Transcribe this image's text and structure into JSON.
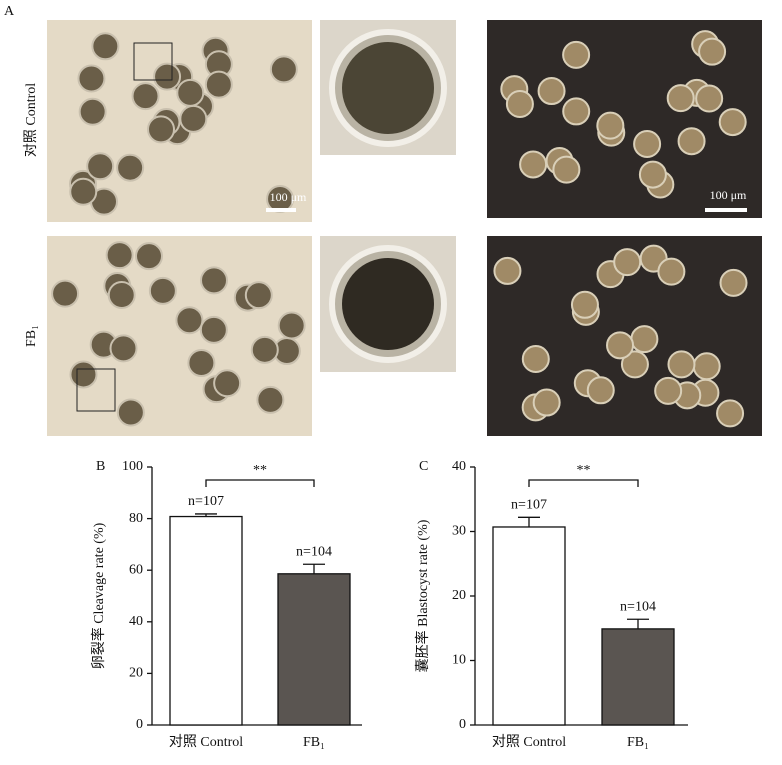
{
  "panel_label": "A",
  "image_rows": [
    {
      "label": "对照 Control",
      "scale_bars": [
        "100 μm",
        "100 μm"
      ]
    },
    {
      "label": "FB₁"
    }
  ],
  "chart_data": [
    {
      "type": "bar",
      "panel_label": "B",
      "y_label": "卵裂率 Cleavage rate (%)",
      "categories": [
        "对照 Control",
        "FB₁"
      ],
      "values": [
        80.8,
        58.6
      ],
      "errors": [
        1.0,
        3.7
      ],
      "colors": [
        "#ffffff",
        "#5a5551"
      ],
      "annotations": [
        "n=107",
        "n=104"
      ],
      "significance": "**",
      "ylim": [
        0,
        100
      ],
      "yticks": [
        0,
        20,
        40,
        60,
        80,
        100
      ]
    },
    {
      "type": "bar",
      "panel_label": "C",
      "y_label": "囊胚率 Blastocyst rate (%)",
      "categories": [
        "对照 Control",
        "FB₁"
      ],
      "values": [
        30.7,
        14.9
      ],
      "errors": [
        1.5,
        1.5
      ],
      "colors": [
        "#ffffff",
        "#5a5551"
      ],
      "annotations": [
        "n=107",
        "n=104"
      ],
      "significance": "**",
      "ylim": [
        0,
        40
      ],
      "yticks": [
        0,
        10,
        20,
        30,
        40
      ]
    }
  ]
}
